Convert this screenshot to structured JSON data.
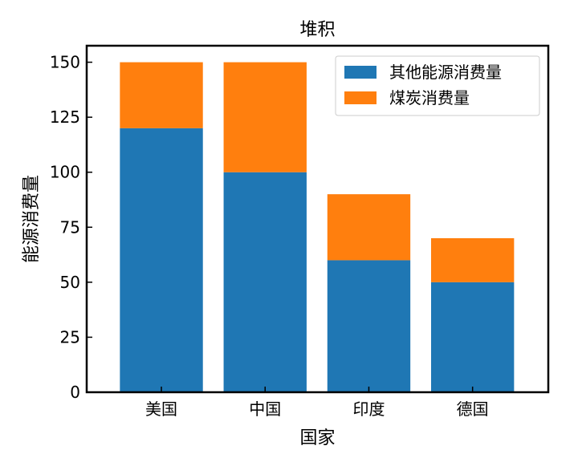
{
  "chart_data": {
    "type": "bar",
    "stacked": true,
    "title": "堆积",
    "xlabel": "国家",
    "ylabel": "能源消费量",
    "categories": [
      "美国",
      "中国",
      "印度",
      "德国"
    ],
    "series": [
      {
        "name": "其他能源消费量",
        "values": [
          120,
          100,
          60,
          50
        ],
        "color": "#1f77b4"
      },
      {
        "name": "煤炭消费量",
        "values": [
          30,
          50,
          30,
          20
        ],
        "color": "#ff7f0e"
      }
    ],
    "ylim": [
      0,
      157.5
    ],
    "yticks": [
      0,
      25,
      50,
      75,
      100,
      125,
      150
    ],
    "grid": false,
    "legend_position": "top-right"
  }
}
